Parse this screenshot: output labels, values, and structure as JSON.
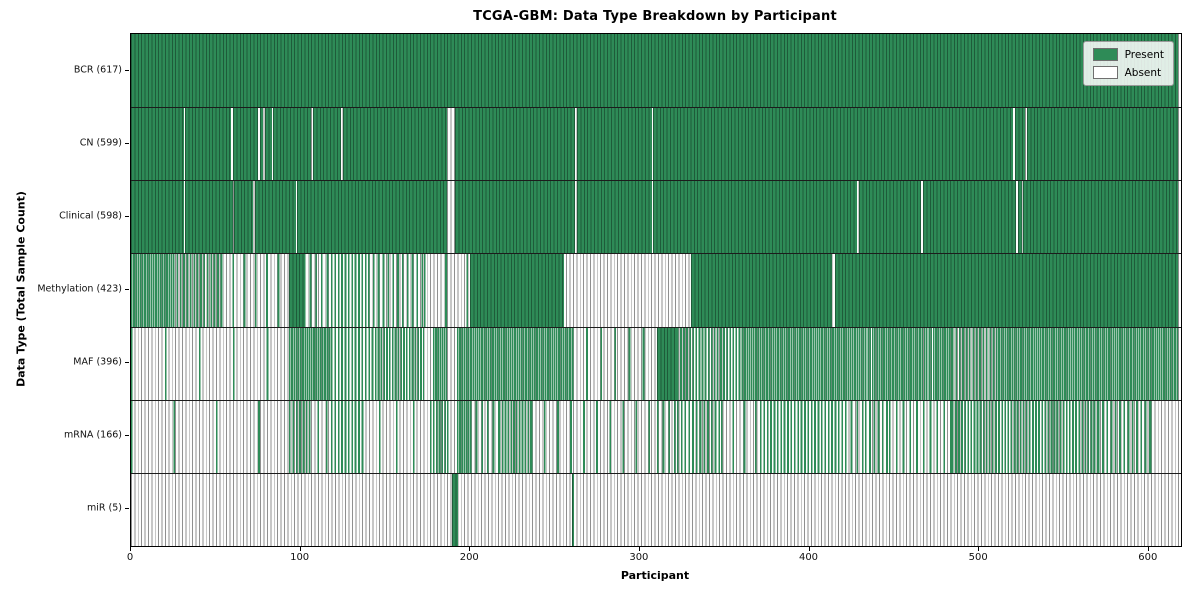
{
  "chart_data": {
    "type": "heatmap",
    "title": "TCGA-GBM: Data Type Breakdown by Participant",
    "xlabel": "Participant",
    "ylabel": "Data Type (Total Sample Count)",
    "xlim": [
      0,
      619
    ],
    "x_ticks": [
      0,
      100,
      200,
      300,
      400,
      500,
      600
    ],
    "grid": false,
    "legend": {
      "position": "upper right",
      "entries": [
        {
          "label": "Present",
          "color": "#2e8b57"
        },
        {
          "label": "Absent",
          "color": "#ffffff"
        }
      ]
    },
    "colors": {
      "present": "#2e8b57",
      "present_edge": "rgba(15,45,30,0.5)",
      "absent_fill": "#fdfdfd",
      "absent_edge": "#8f8f8f",
      "row_separator": "#1c1c1c"
    },
    "value_semantics": "rows list [start,end,fraction_present] segments per participant index 0-617",
    "rows": [
      {
        "name": "BCR",
        "label": "BCR (617)",
        "count": 617,
        "segments": [
          [
            0,
            617,
            1
          ]
        ]
      },
      {
        "name": "CN",
        "label": "CN (599)",
        "count": 599,
        "segments": [
          [
            0,
            31,
            1
          ],
          [
            32,
            59,
            1
          ],
          [
            60,
            75,
            1
          ],
          [
            76,
            78,
            1
          ],
          [
            79,
            83,
            1
          ],
          [
            84,
            106,
            1
          ],
          [
            107,
            124,
            1
          ],
          [
            125,
            186,
            1
          ],
          [
            191,
            262,
            1
          ],
          [
            263,
            307,
            1
          ],
          [
            308,
            520,
            1
          ],
          [
            521,
            527,
            1
          ],
          [
            528,
            617,
            1
          ]
        ]
      },
      {
        "name": "Clinical",
        "label": "Clinical (598)",
        "count": 598,
        "segments": [
          [
            0,
            31,
            1
          ],
          [
            32,
            60,
            1
          ],
          [
            61,
            72,
            1
          ],
          [
            73,
            97,
            1
          ],
          [
            98,
            186,
            1
          ],
          [
            191,
            262,
            1
          ],
          [
            263,
            307,
            1
          ],
          [
            308,
            428,
            1
          ],
          [
            429,
            466,
            1
          ],
          [
            467,
            522,
            1
          ],
          [
            523,
            525,
            1
          ],
          [
            526,
            617,
            1
          ]
        ]
      },
      {
        "name": "Methylation",
        "label": "Methylation (423)",
        "count": 423,
        "segments": [
          [
            0,
            25,
            0.85
          ],
          [
            25,
            53,
            0.5
          ],
          [
            53,
            93,
            0.15
          ],
          [
            93,
            102,
            1
          ],
          [
            102,
            118,
            0.3
          ],
          [
            118,
            140,
            0.5
          ],
          [
            140,
            173,
            0.35
          ],
          [
            173,
            200,
            0.08
          ],
          [
            200,
            255,
            1
          ],
          [
            330,
            413,
            1
          ],
          [
            415,
            617,
            1
          ]
        ]
      },
      {
        "name": "MAF",
        "label": "MAF (396)",
        "count": 396,
        "segments": [
          [
            0,
            93,
            0.05
          ],
          [
            93,
            118,
            0.8
          ],
          [
            118,
            142,
            0.5
          ],
          [
            142,
            173,
            0.6
          ],
          [
            178,
            186,
            0.9
          ],
          [
            192,
            260,
            0.85
          ],
          [
            260,
            310,
            0.12
          ],
          [
            310,
            322,
            1
          ],
          [
            322,
            360,
            0.55
          ],
          [
            360,
            433,
            0.8
          ],
          [
            433,
            484,
            0.75
          ],
          [
            484,
            510,
            0.5
          ],
          [
            510,
            617,
            0.85
          ]
        ]
      },
      {
        "name": "mRNA",
        "label": "mRNA (166)",
        "count": 166,
        "segments": [
          [
            0,
            93,
            0.04
          ],
          [
            93,
            105,
            0.5
          ],
          [
            105,
            118,
            0.2
          ],
          [
            118,
            136,
            0.5
          ],
          [
            136,
            178,
            0.1
          ],
          [
            178,
            186,
            0.6
          ],
          [
            186,
            192,
            0.05
          ],
          [
            192,
            200,
            0.9
          ],
          [
            200,
            217,
            0.3
          ],
          [
            217,
            236,
            0.6
          ],
          [
            236,
            310,
            0.13
          ],
          [
            310,
            322,
            0.3
          ],
          [
            322,
            348,
            0.45
          ],
          [
            348,
            371,
            0.15
          ],
          [
            371,
            421,
            0.5
          ],
          [
            421,
            433,
            0.3
          ],
          [
            433,
            447,
            0.4
          ],
          [
            447,
            484,
            0.25
          ],
          [
            484,
            570,
            0.55
          ],
          [
            570,
            601,
            0.4
          ],
          [
            601,
            617,
            0.05
          ]
        ]
      },
      {
        "name": "miR",
        "label": "miR (5)",
        "count": 5,
        "segments": [
          [
            189,
            193,
            1
          ],
          [
            260,
            261,
            1
          ]
        ]
      }
    ]
  }
}
